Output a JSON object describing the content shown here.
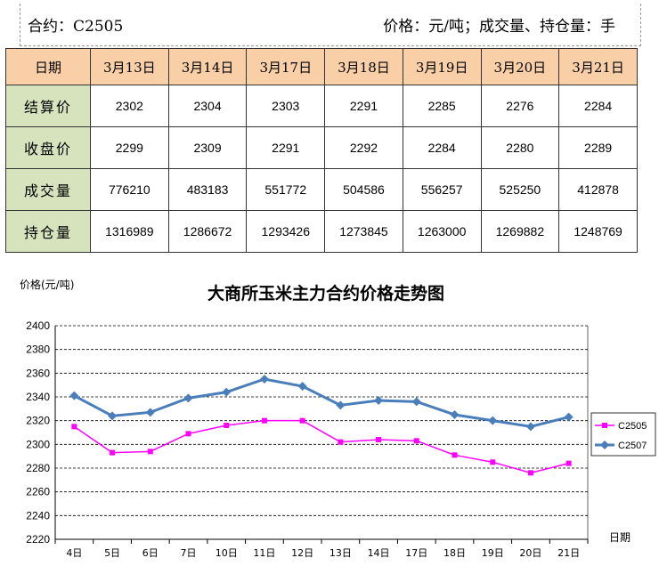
{
  "header": {
    "contract_text": "合约：C2505",
    "units_text": "价格：元/吨；成交量、持仓量：手"
  },
  "table": {
    "corner_label": "日期",
    "dates": [
      "3月13日",
      "3月14日",
      "3月17日",
      "3月18日",
      "3月19日",
      "3月20日",
      "3月21日"
    ],
    "rows": [
      {
        "label": "结算价",
        "values": [
          "2302",
          "2304",
          "2303",
          "2291",
          "2285",
          "2276",
          "2284"
        ]
      },
      {
        "label": "收盘价",
        "values": [
          "2299",
          "2309",
          "2291",
          "2292",
          "2284",
          "2280",
          "2289"
        ]
      },
      {
        "label": "成交量",
        "values": [
          "776210",
          "483183",
          "551772",
          "504586",
          "556257",
          "525250",
          "412878"
        ]
      },
      {
        "label": "持仓量",
        "values": [
          "1316989",
          "1286672",
          "1293426",
          "1273845",
          "1263000",
          "1269882",
          "1248769"
        ]
      }
    ]
  },
  "chart_data": {
    "type": "line",
    "title": "大商所玉米主力合约价格走势图",
    "ylabel": "价格(元/吨)",
    "xlabel": "日期",
    "categories": [
      "4日",
      "5日",
      "6日",
      "7日",
      "10日",
      "11日",
      "12日",
      "13日",
      "14日",
      "17日",
      "18日",
      "19日",
      "20日",
      "21日"
    ],
    "ylim": [
      2220,
      2400
    ],
    "yticks": [
      2220,
      2240,
      2260,
      2280,
      2300,
      2320,
      2340,
      2360,
      2380,
      2400
    ],
    "grid": true,
    "legend_position": "right",
    "series": [
      {
        "name": "C2505",
        "color": "#ff00ff",
        "marker": "square",
        "values": [
          2315,
          2293,
          2294,
          2309,
          2316,
          2320,
          2320,
          2302,
          2304,
          2303,
          2291,
          2285,
          2276,
          2284
        ]
      },
      {
        "name": "C2507",
        "color": "#4a7ebb",
        "marker": "diamond",
        "values": [
          2341,
          2324,
          2327,
          2339,
          2344,
          2355,
          2349,
          2333,
          2337,
          2336,
          2325,
          2320,
          2315,
          2323
        ]
      }
    ]
  }
}
